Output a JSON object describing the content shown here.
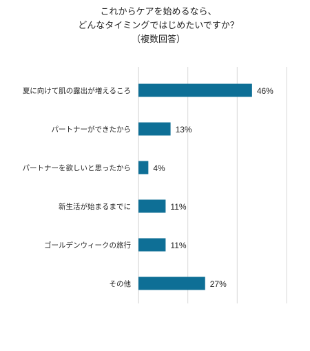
{
  "chart_data": {
    "type": "bar",
    "orientation": "horizontal",
    "title": [
      "これからケアを始めるなら、",
      "どんなタイミングではじめたいですか？",
      "（複数回答）"
    ],
    "categories": [
      "夏に向けて肌の露出が増えるころ",
      "パートナーができたから",
      "パートナーを欲しいと思ったから",
      "新生活が始まるまでに",
      "ゴールデンウィークの旅行",
      "その他"
    ],
    "values": [
      46,
      13,
      4,
      11,
      11,
      27
    ],
    "value_labels": [
      "46%",
      "13%",
      "4%",
      "11%",
      "11%",
      "27%"
    ],
    "unit": "%",
    "xlim": [
      0,
      60
    ],
    "gridlines": [
      0,
      20,
      40,
      60
    ],
    "grid": true,
    "legend": "none",
    "bar_color": "#0e6f96"
  }
}
